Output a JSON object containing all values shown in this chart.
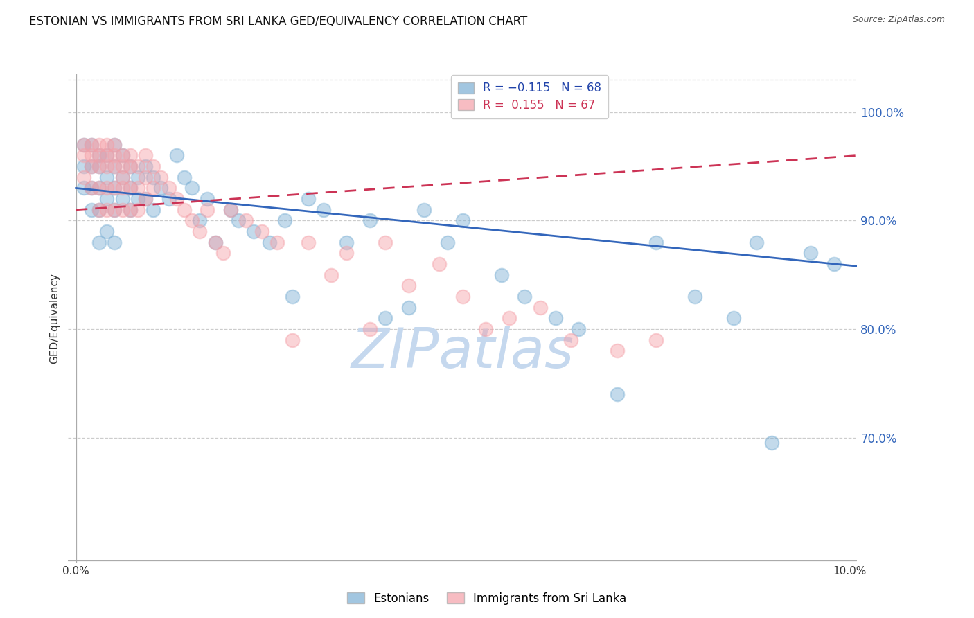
{
  "title": "ESTONIAN VS IMMIGRANTS FROM SRI LANKA GED/EQUIVALENCY CORRELATION CHART",
  "source": "Source: ZipAtlas.com",
  "ylabel": "GED/Equivalency",
  "ymin": 0.585,
  "ymax": 1.035,
  "xmin": -0.001,
  "xmax": 0.101,
  "blue_R": -0.115,
  "blue_N": 68,
  "pink_R": 0.155,
  "pink_N": 67,
  "blue_color": "#7BAFD4",
  "pink_color": "#F4A0A8",
  "blue_label": "Estonians",
  "pink_label": "Immigrants from Sri Lanka",
  "watermark": "ZIPatlas",
  "watermark_color": "#C5D8EE",
  "title_fontsize": 12,
  "axis_label_fontsize": 11,
  "tick_fontsize": 11,
  "legend_fontsize": 12,
  "blue_trend_x": [
    0.0,
    0.101
  ],
  "blue_trend_y": [
    0.93,
    0.858
  ],
  "pink_trend_x": [
    0.0,
    0.101
  ],
  "pink_trend_y": [
    0.91,
    0.96
  ],
  "blue_x": [
    0.001,
    0.001,
    0.001,
    0.002,
    0.002,
    0.002,
    0.002,
    0.003,
    0.003,
    0.003,
    0.003,
    0.003,
    0.004,
    0.004,
    0.004,
    0.004,
    0.005,
    0.005,
    0.005,
    0.005,
    0.005,
    0.006,
    0.006,
    0.006,
    0.007,
    0.007,
    0.007,
    0.008,
    0.008,
    0.009,
    0.009,
    0.01,
    0.01,
    0.011,
    0.012,
    0.013,
    0.014,
    0.015,
    0.016,
    0.017,
    0.018,
    0.02,
    0.021,
    0.023,
    0.025,
    0.027,
    0.028,
    0.03,
    0.032,
    0.035,
    0.038,
    0.04,
    0.043,
    0.045,
    0.048,
    0.05,
    0.055,
    0.058,
    0.062,
    0.065,
    0.07,
    0.075,
    0.08,
    0.085,
    0.088,
    0.09,
    0.095,
    0.098
  ],
  "blue_y": [
    0.97,
    0.95,
    0.93,
    0.97,
    0.95,
    0.93,
    0.91,
    0.96,
    0.95,
    0.93,
    0.91,
    0.88,
    0.96,
    0.94,
    0.92,
    0.89,
    0.97,
    0.95,
    0.93,
    0.91,
    0.88,
    0.96,
    0.94,
    0.92,
    0.95,
    0.93,
    0.91,
    0.94,
    0.92,
    0.95,
    0.92,
    0.94,
    0.91,
    0.93,
    0.92,
    0.96,
    0.94,
    0.93,
    0.9,
    0.92,
    0.88,
    0.91,
    0.9,
    0.89,
    0.88,
    0.9,
    0.83,
    0.92,
    0.91,
    0.88,
    0.9,
    0.81,
    0.82,
    0.91,
    0.88,
    0.9,
    0.85,
    0.83,
    0.81,
    0.8,
    0.74,
    0.88,
    0.83,
    0.81,
    0.88,
    0.695,
    0.87,
    0.86
  ],
  "pink_x": [
    0.001,
    0.001,
    0.001,
    0.002,
    0.002,
    0.002,
    0.002,
    0.003,
    0.003,
    0.003,
    0.003,
    0.003,
    0.004,
    0.004,
    0.004,
    0.004,
    0.004,
    0.005,
    0.005,
    0.005,
    0.005,
    0.005,
    0.006,
    0.006,
    0.006,
    0.006,
    0.006,
    0.007,
    0.007,
    0.007,
    0.007,
    0.008,
    0.008,
    0.008,
    0.009,
    0.009,
    0.009,
    0.01,
    0.01,
    0.011,
    0.012,
    0.013,
    0.014,
    0.015,
    0.016,
    0.017,
    0.018,
    0.019,
    0.02,
    0.022,
    0.024,
    0.026,
    0.028,
    0.03,
    0.033,
    0.035,
    0.038,
    0.04,
    0.043,
    0.047,
    0.05,
    0.053,
    0.056,
    0.06,
    0.064,
    0.07,
    0.075
  ],
  "pink_y": [
    0.97,
    0.96,
    0.94,
    0.97,
    0.96,
    0.95,
    0.93,
    0.97,
    0.96,
    0.95,
    0.93,
    0.91,
    0.97,
    0.96,
    0.95,
    0.93,
    0.91,
    0.97,
    0.96,
    0.95,
    0.93,
    0.91,
    0.96,
    0.95,
    0.94,
    0.93,
    0.91,
    0.96,
    0.95,
    0.93,
    0.91,
    0.95,
    0.93,
    0.91,
    0.96,
    0.94,
    0.92,
    0.95,
    0.93,
    0.94,
    0.93,
    0.92,
    0.91,
    0.9,
    0.89,
    0.91,
    0.88,
    0.87,
    0.91,
    0.9,
    0.89,
    0.88,
    0.79,
    0.88,
    0.85,
    0.87,
    0.8,
    0.88,
    0.84,
    0.86,
    0.83,
    0.8,
    0.81,
    0.82,
    0.79,
    0.78,
    0.79
  ]
}
